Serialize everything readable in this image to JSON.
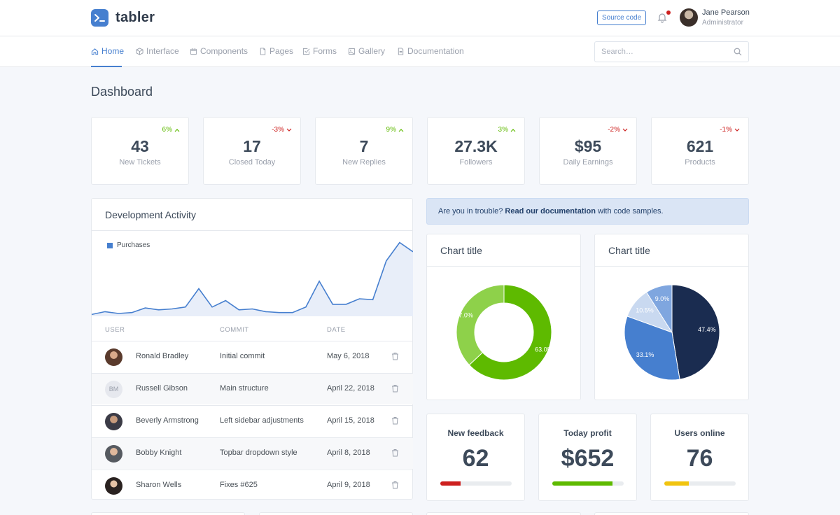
{
  "header": {
    "logo_text": "tabler",
    "source_button": "Source code",
    "user_name": "Jane Pearson",
    "user_role": "Administrator"
  },
  "nav": {
    "items": [
      {
        "label": "Home",
        "icon": "home-icon",
        "active": true
      },
      {
        "label": "Interface",
        "icon": "box-icon"
      },
      {
        "label": "Components",
        "icon": "calendar-icon"
      },
      {
        "label": "Pages",
        "icon": "file-icon"
      },
      {
        "label": "Forms",
        "icon": "check-square-icon"
      },
      {
        "label": "Gallery",
        "icon": "image-icon"
      },
      {
        "label": "Documentation",
        "icon": "file-text-icon"
      }
    ],
    "search_placeholder": "Search…"
  },
  "page_title": "Dashboard",
  "stats": [
    {
      "value": "43",
      "label": "New Tickets",
      "change": "6%",
      "direction": "up"
    },
    {
      "value": "17",
      "label": "Closed Today",
      "change": "-3%",
      "direction": "down"
    },
    {
      "value": "7",
      "label": "New Replies",
      "change": "9%",
      "direction": "up"
    },
    {
      "value": "27.3K",
      "label": "Followers",
      "change": "3%",
      "direction": "up"
    },
    {
      "value": "$95",
      "label": "Daily Earnings",
      "change": "-2%",
      "direction": "down"
    },
    {
      "value": "621",
      "label": "Products",
      "change": "-1%",
      "direction": "down"
    }
  ],
  "dev_activity": {
    "title": "Development Activity",
    "legend": "Purchases",
    "columns": [
      "USER",
      "COMMIT",
      "DATE"
    ],
    "rows": [
      {
        "user": "Ronald Bradley",
        "commit": "Initial commit",
        "date": "May 6, 2018",
        "avatar": "photo"
      },
      {
        "user": "Russell Gibson",
        "commit": "Main structure",
        "date": "April 22, 2018",
        "avatar": "initials",
        "initials": "BM"
      },
      {
        "user": "Beverly Armstrong",
        "commit": "Left sidebar adjustments",
        "date": "April 15, 2018",
        "avatar": "photo"
      },
      {
        "user": "Bobby Knight",
        "commit": "Topbar dropdown style",
        "date": "April 8, 2018",
        "avatar": "photo"
      },
      {
        "user": "Sharon Wells",
        "commit": "Fixes #625",
        "date": "April 9, 2018",
        "avatar": "photo"
      }
    ]
  },
  "alert": {
    "prefix": "Are you in trouble?",
    "link": "Read our documentation",
    "suffix": "with code samples."
  },
  "chart_data": [
    {
      "type": "area",
      "series": [
        {
          "name": "Purchases",
          "values": [
            2,
            5,
            3,
            4,
            9,
            7,
            8,
            10,
            30,
            10,
            17,
            7,
            8,
            5,
            4,
            4,
            10,
            38,
            13,
            13,
            19,
            18,
            60,
            80,
            70
          ]
        }
      ],
      "ylim": [
        0,
        85
      ]
    },
    {
      "type": "donut",
      "title": "Chart title",
      "slices": [
        {
          "value": 63.0,
          "label": "63.0%",
          "color": "#5eba00"
        },
        {
          "value": 37.0,
          "label": "37.0%",
          "color": "#8ed14a"
        }
      ]
    },
    {
      "type": "pie",
      "title": "Chart title",
      "slices": [
        {
          "value": 47.4,
          "label": "47.4%",
          "color": "#1a2c50"
        },
        {
          "value": 33.1,
          "label": "33.1%",
          "color": "#467fcf"
        },
        {
          "value": 10.5,
          "label": "10.5%",
          "color": "#c9d9f0"
        },
        {
          "value": 9.0,
          "label": "9.0%",
          "color": "#7fa6df"
        }
      ]
    }
  ],
  "kpis": [
    {
      "title": "New feedback",
      "value": "62",
      "progress": 0.28,
      "color": "#cd201f"
    },
    {
      "title": "Today profit",
      "value": "$652",
      "progress": 0.84,
      "color": "#5eba00"
    },
    {
      "title": "Users online",
      "value": "76",
      "progress": 0.34,
      "color": "#f1c40f"
    }
  ],
  "colors": {
    "primary": "#467fcf",
    "success": "#5eba00",
    "danger": "#cd201f"
  }
}
